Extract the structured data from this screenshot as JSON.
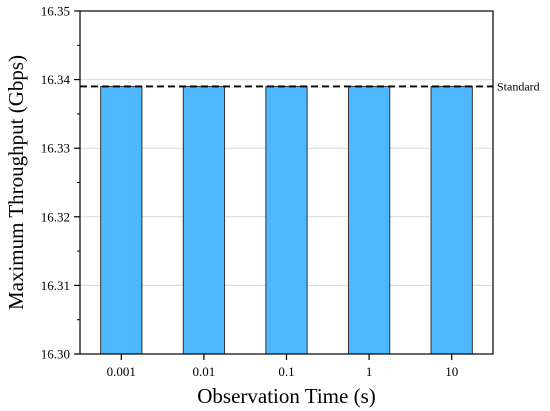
{
  "chart_data": {
    "type": "bar",
    "title": "",
    "xlabel": "Observation Time (s)",
    "ylabel": "Maximum Throughput (Gbps)",
    "categories": [
      "0.001",
      "0.01",
      "0.1",
      "1",
      "10"
    ],
    "series": [
      {
        "values": [
          16.339,
          16.339,
          16.339,
          16.339,
          16.339
        ]
      }
    ],
    "ylim": [
      16.3,
      16.35
    ],
    "yticks": [
      "16.30",
      "16.31",
      "16.32",
      "16.33",
      "16.34",
      "16.35"
    ],
    "grid": true,
    "reference_line": {
      "label": "Standard",
      "value": 16.339,
      "style": "dashed"
    },
    "colors": {
      "bar_fill": "#4db8ff",
      "bar_stroke": "#333333",
      "grid": "#d9d9d9",
      "axis": "#000000"
    }
  }
}
